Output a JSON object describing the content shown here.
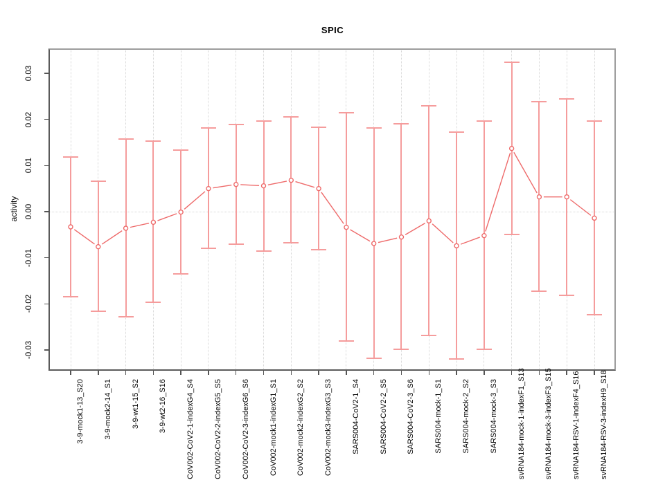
{
  "chart_data": {
    "type": "line",
    "title": "SPIC",
    "ylabel": "activity",
    "xlabel": "",
    "ylim": [
      -0.034,
      0.035
    ],
    "grid": {
      "vertical": "dotted line at every category",
      "horizontal": "dotted line at zero only"
    },
    "legend": "none",
    "yticks": [
      {
        "value": 0.03,
        "label": "0.03"
      },
      {
        "value": 0.02,
        "label": "0.02"
      },
      {
        "value": 0.01,
        "label": "0.01"
      },
      {
        "value": 0.0,
        "label": "0.00"
      },
      {
        "value": -0.01,
        "label": "-0.01"
      },
      {
        "value": -0.02,
        "label": "-0.02"
      },
      {
        "value": -0.03,
        "label": "-0.03"
      }
    ],
    "categories": [
      "3-9-mock1-13_S20",
      "3-9-mock2-14_S1",
      "3-9-wt1-15_S2",
      "3-9-wt2-16_S16",
      "CoV002-CoV2-1-indexG4_S4",
      "CoV002-CoV2-2-indexG5_S5",
      "CoV002-CoV2-3-indexG6_S6",
      "CoV002-mock1-indexG1_S1",
      "CoV002-mock2-indexG2_S2",
      "CoV002-mock3-indexG3_S3",
      "SARS004-CoV2-1_S4",
      "SARS004-CoV2-2_S5",
      "SARS004-CoV2-3_S6",
      "SARS004-mock-1_S1",
      "SARS004-mock-2_S2",
      "SARS004-mock-3_S3",
      "svRNA184-mock-1-indexF1_S13",
      "svRNA184-mock-3-indexF3_S15",
      "svRNA184-RSV-1-indexF4_S16",
      "svRNA184-RSV-3-indexH9_S18"
    ],
    "series": [
      {
        "name": "activity",
        "marker": "open-circle",
        "values": [
          -0.0033,
          -0.0076,
          -0.0036,
          -0.0023,
          -0.0001,
          0.005,
          0.0059,
          0.0056,
          0.0068,
          0.005,
          -0.0034,
          -0.0069,
          -0.0055,
          -0.002,
          -0.0074,
          -0.0052,
          0.0137,
          0.0032,
          0.0032,
          -0.0014
        ],
        "error_high": [
          0.0118,
          0.0066,
          0.0157,
          0.0153,
          0.0133,
          0.0181,
          0.0189,
          0.0197,
          0.0206,
          0.0183,
          0.0214,
          0.0181,
          0.019,
          0.0229,
          0.0172,
          0.0196,
          0.0324,
          0.0238,
          0.0245,
          0.0196
        ],
        "error_low": [
          -0.0184,
          -0.0216,
          -0.0228,
          -0.0196,
          -0.0135,
          -0.0079,
          -0.007,
          -0.0086,
          -0.0067,
          -0.0083,
          -0.0281,
          -0.0318,
          -0.0299,
          -0.0268,
          -0.032,
          -0.0299,
          -0.005,
          -0.0173,
          -0.0181,
          -0.0224
        ]
      }
    ],
    "colors": {
      "series_line": "#ee6a6a",
      "error_bar": "#f59c9c",
      "grid": "#d6d6d6",
      "box_border": "#9c9c9c",
      "axis_text": "#000000"
    }
  }
}
